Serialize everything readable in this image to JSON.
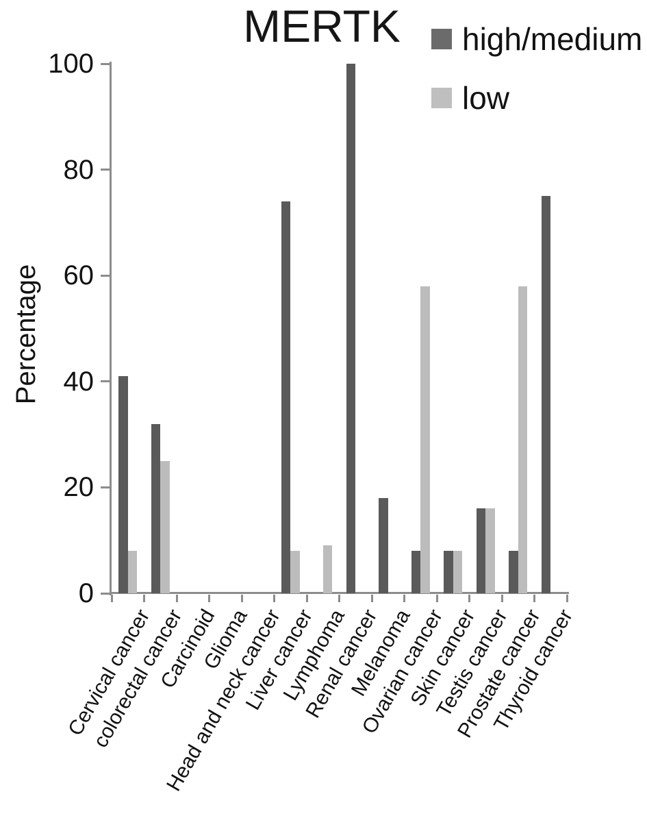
{
  "title": "MERTK",
  "legend": {
    "items": [
      {
        "label": "high/medium",
        "color": "#6b6b6b"
      },
      {
        "label": "low",
        "color": "#bfbfbf"
      }
    ]
  },
  "y_axis": {
    "label": "Percentage"
  },
  "colors": {
    "axis": "#8c8c8c",
    "bar_dark": "#5a5a5a",
    "bar_light": "#bcbcbc",
    "text": "#121212"
  },
  "chart_data": {
    "type": "bar",
    "title": "MERTK",
    "categories": [
      "Cervical cancer",
      "colorectal cancer",
      "Carcinoid",
      "Glioma",
      "Head and neck cancer",
      "Liver cancer",
      "Lymphoma",
      "Renal cancer",
      "Melanoma",
      "Ovarian cancer",
      "Skin cancer",
      "Testis cancer",
      "Prostate cancer",
      "Thyroid cancer"
    ],
    "series": [
      {
        "name": "high/medium",
        "color": "#5a5a5a",
        "values": [
          41,
          32,
          0,
          0,
          0,
          74,
          0,
          100,
          18,
          8,
          8,
          16,
          8,
          75
        ]
      },
      {
        "name": "low",
        "color": "#bcbcbc",
        "values": [
          8,
          25,
          0,
          0,
          0,
          8,
          9,
          0,
          0,
          58,
          8,
          16,
          58,
          0
        ]
      }
    ],
    "xlabel": "",
    "ylabel": "Percentage",
    "ylim": [
      0,
      100
    ],
    "yticks": [
      0,
      20,
      40,
      60,
      80,
      100
    ],
    "grid": false,
    "legend_position": "top-right",
    "x_labels_rotation_deg": -60
  }
}
